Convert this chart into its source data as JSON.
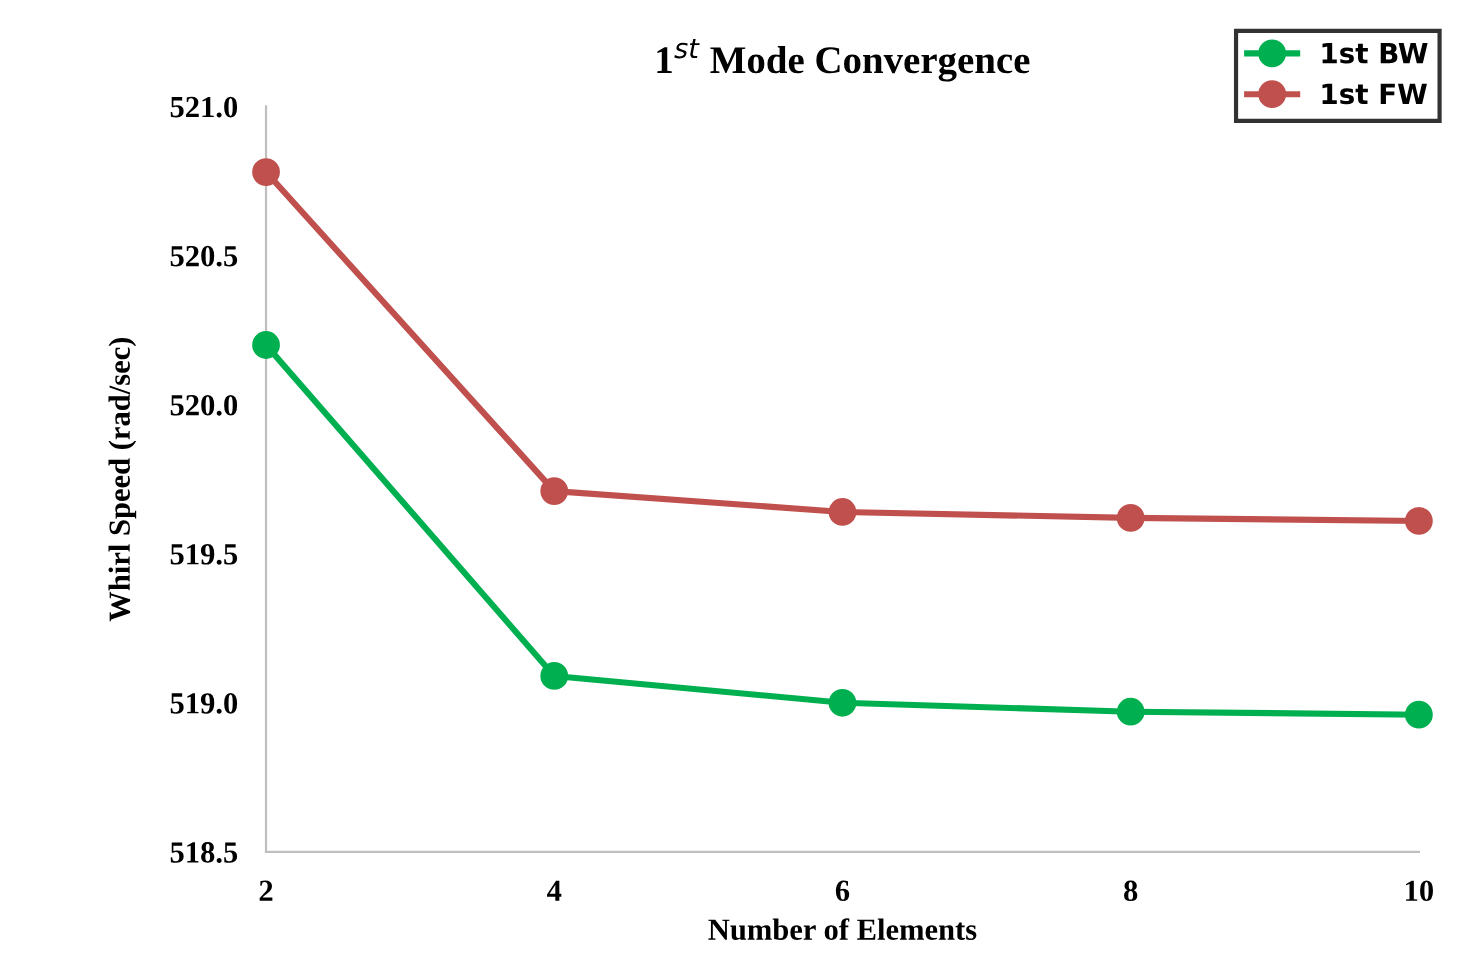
{
  "chart_data": {
    "type": "line",
    "title": "1$^{st}$ Mode Convergence",
    "xlabel": "Number of Elements",
    "ylabel": "Whirl Speed (rad/sec)",
    "x": [
      2,
      4,
      6,
      8,
      10
    ],
    "series": [
      {
        "name": "1st BW",
        "color": "#00b050",
        "values": [
          520.2,
          519.09,
          519.0,
          518.97,
          518.96
        ]
      },
      {
        "name": "1st FW",
        "color": "#c0504d",
        "values": [
          520.78,
          519.71,
          519.64,
          519.62,
          519.61
        ]
      }
    ],
    "xlim": [
      2,
      10
    ],
    "xticks": [
      2,
      4,
      6,
      8,
      10
    ],
    "ylim": [
      518.5,
      521.0
    ],
    "yticks": [
      {
        "value": 518.5,
        "label": "518.5"
      },
      {
        "value": 519.0,
        "label": "519.0"
      },
      {
        "value": 519.5,
        "label": "519.5"
      },
      {
        "value": 520.0,
        "label": "520.0"
      },
      {
        "value": 520.5,
        "label": "520.5"
      },
      {
        "value": 521.0,
        "label": "521.0"
      }
    ],
    "grid": false,
    "legend": "top right",
    "marker": "circle",
    "line_style": "solid"
  }
}
